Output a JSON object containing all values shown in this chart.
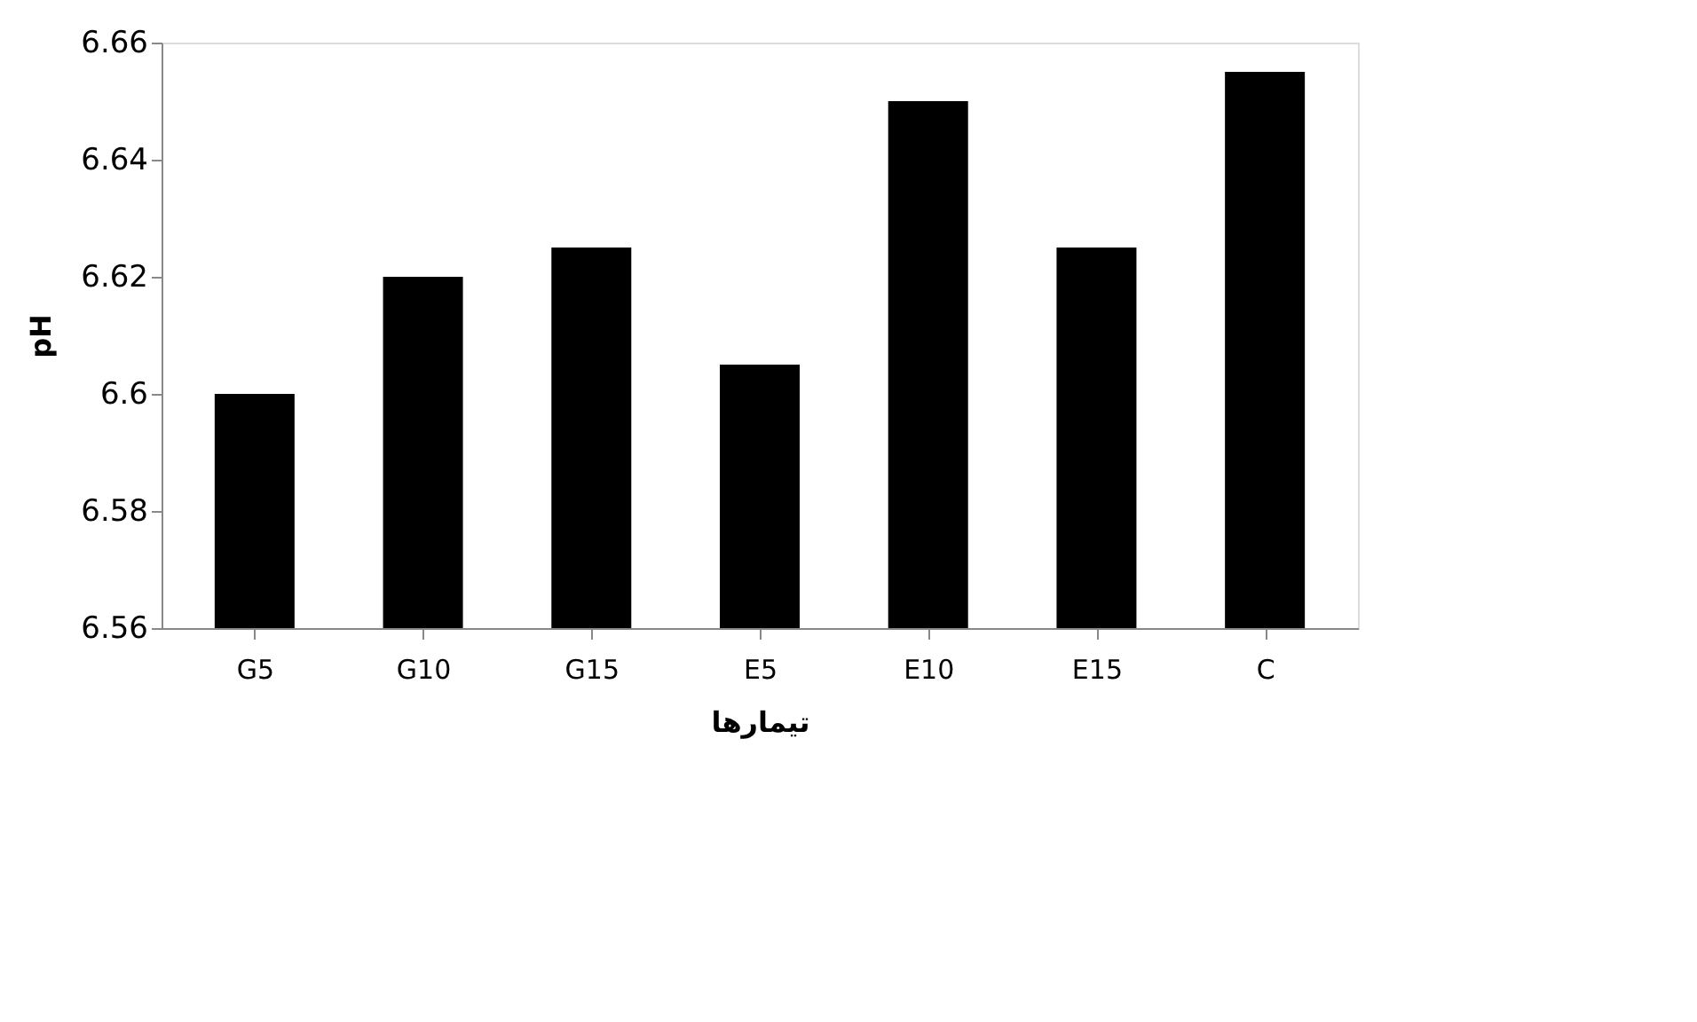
{
  "chart_data": {
    "type": "bar",
    "xlabel": "تیمارها",
    "ylabel": "pH",
    "categories": [
      "G5",
      "G10",
      "G15",
      "E5",
      "E10",
      "E15",
      "C"
    ],
    "values": [
      6.6,
      6.62,
      6.625,
      6.605,
      6.65,
      6.625,
      6.655
    ],
    "color": "#000000",
    "ylim": [
      6.56,
      6.66
    ],
    "yticks": [
      6.56,
      6.58,
      6.6,
      6.62,
      6.64,
      6.66
    ],
    "grid": false
  }
}
